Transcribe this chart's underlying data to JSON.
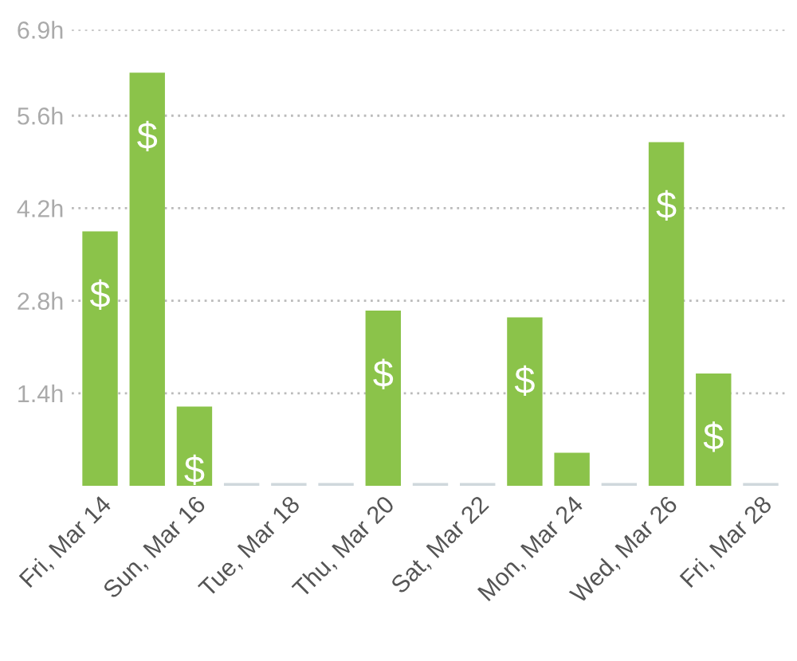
{
  "chart_data": {
    "type": "bar",
    "categories": [
      "Fri, Mar 14",
      null,
      "Sun, Mar 16",
      null,
      "Tue, Mar 18",
      null,
      "Thu, Mar 20",
      null,
      "Sat, Mar 22",
      null,
      "Mon, Mar 24",
      null,
      "Wed, Mar 26",
      null,
      "Fri, Mar 28"
    ],
    "values": [
      3.85,
      6.25,
      1.2,
      0,
      0,
      0,
      2.65,
      0,
      0,
      2.55,
      0.5,
      0,
      5.2,
      1.7,
      0
    ],
    "colors": [
      "#8bc34a",
      "#8bc34a",
      "#8bc34a",
      "#cfd8dc",
      "#cfd8dc",
      "#cfd8dc",
      "#8bc34a",
      "#cfd8dc",
      "#cfd8dc",
      "#8bc34a",
      "#8bc34a",
      "#cfd8dc",
      "#8bc34a",
      "#8bc34a",
      "#cfd8dc"
    ],
    "value_labels": [
      "$",
      "$",
      "$",
      null,
      null,
      null,
      "$",
      null,
      null,
      "$",
      null,
      null,
      "$",
      "$",
      null
    ],
    "ylim": [
      0,
      6.9
    ],
    "yticks": [
      {
        "value": 1.4,
        "label": "1.4h"
      },
      {
        "value": 2.8,
        "label": "2.8h"
      },
      {
        "value": 4.2,
        "label": "4.2h"
      },
      {
        "value": 5.6,
        "label": "5.6h"
      },
      {
        "value": 6.9,
        "label": "6.9h"
      }
    ],
    "grid": "y"
  }
}
